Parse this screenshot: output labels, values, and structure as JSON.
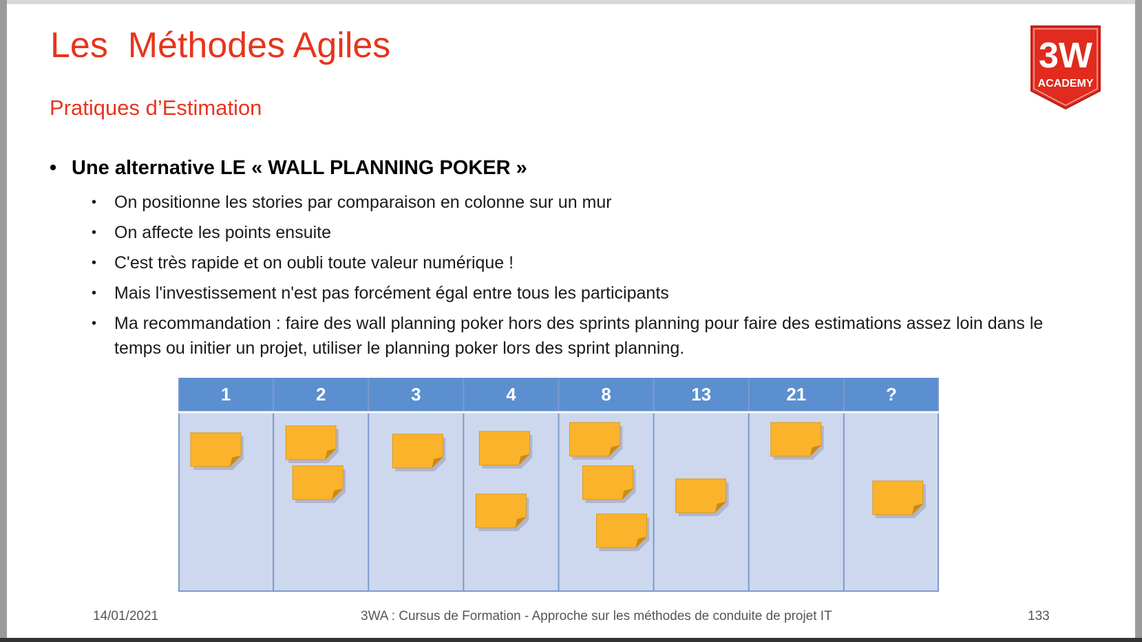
{
  "slide": {
    "title": "Les  Méthodes Agiles",
    "subtitle": "Pratiques d’Estimation",
    "logo": {
      "line1": "3W",
      "line2": "ACADEMY",
      "color": "#e02b1e"
    },
    "main_bullet": "Une alternative LE « WALL PLANNING POKER »",
    "sub_bullets": [
      "On positionne les stories par comparaison en colonne sur un mur",
      "On affecte les points ensuite",
      "C'est très rapide et on oubli toute valeur numérique !",
      "Mais l'investissement n'est pas forcément égal entre tous les participants",
      "Ma recommandation : faire des wall planning poker hors des sprints planning pour faire des estimations assez loin dans le temps ou initier un projet, utiliser le planning poker lors des sprint planning."
    ],
    "bullet_glyph": "•",
    "board": {
      "columns": [
        "1",
        "2",
        "3",
        "4",
        "8",
        "13",
        "21",
        "?"
      ],
      "sticky_notes_per_column": [
        1,
        2,
        1,
        2,
        3,
        1,
        1,
        1
      ],
      "header_color": "#5b8fd0",
      "body_color": "#cdd8ee",
      "note_color": "#fbb32c"
    },
    "footer": {
      "date": "14/01/2021",
      "title": "3WA : Cursus de Formation - Approche sur les méthodes de conduite de projet IT",
      "page": "133"
    }
  }
}
